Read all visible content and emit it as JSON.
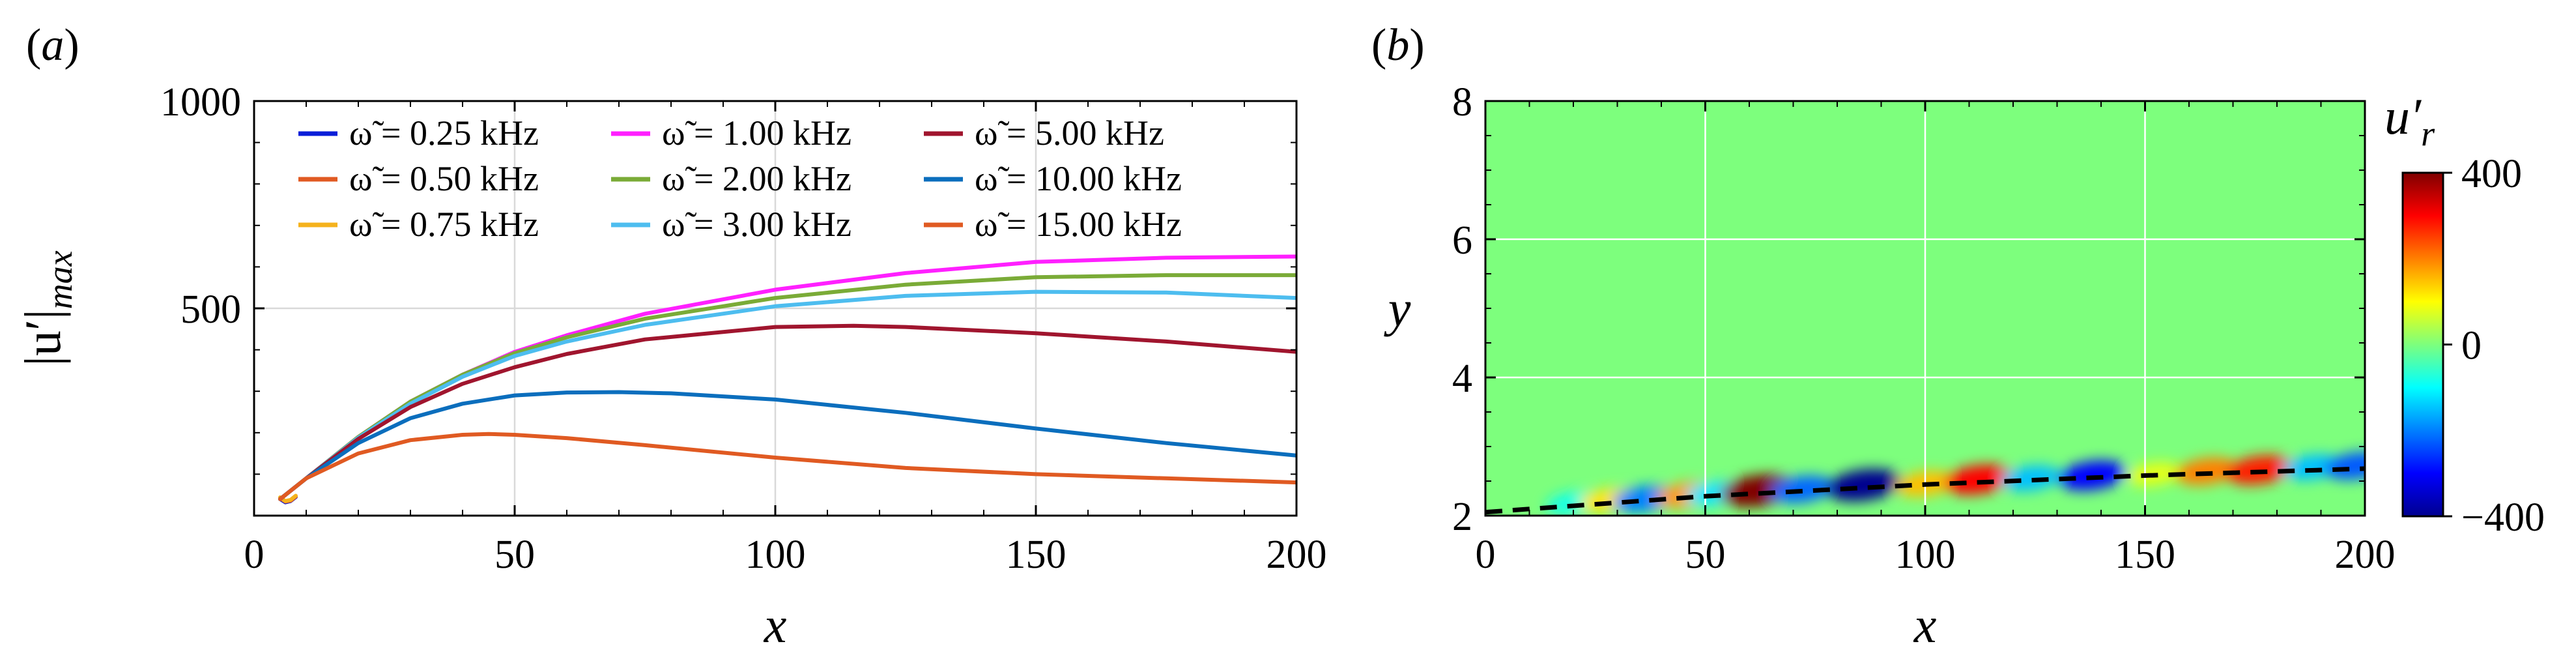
{
  "chart_data": [
    {
      "type": "line",
      "panel_label": "(a)",
      "xlabel": "x",
      "ylabel": "|u′|max",
      "ylabel_main": "|u′|",
      "ylabel_sub": "max",
      "xlim": [
        0,
        200
      ],
      "ylim": [
        0,
        1000
      ],
      "xticks": [
        0,
        50,
        100,
        150,
        200
      ],
      "yticks": [
        500,
        1000
      ],
      "x_tick_labels": [
        "0",
        "50",
        "100",
        "150",
        "200"
      ],
      "y_tick_labels": [
        "500",
        "1000"
      ],
      "grid": true,
      "legend_position": "top-left",
      "series": [
        {
          "name": "ω̃ = 0.25 kHz",
          "color": "#0a1ed8",
          "x": [
            5,
            6,
            7,
            8
          ],
          "y": [
            40,
            32,
            35,
            45
          ]
        },
        {
          "name": "ω̃ = 0.50 kHz",
          "color": "#e05a22",
          "x": [
            5,
            6,
            7,
            8
          ],
          "y": [
            42,
            34,
            36,
            46
          ]
        },
        {
          "name": "ω̃ = 0.75 kHz",
          "color": "#f5b21c",
          "x": [
            5,
            6,
            7,
            8
          ],
          "y": [
            44,
            35,
            38,
            48
          ]
        },
        {
          "name": "ω̃ = 1.00 kHz",
          "color": "#ff20ff",
          "x": [
            5,
            10,
            20,
            30,
            40,
            50,
            60,
            75,
            100,
            125,
            150,
            175,
            200
          ],
          "y": [
            40,
            90,
            190,
            275,
            340,
            395,
            435,
            487,
            545,
            585,
            612,
            622,
            625
          ]
        },
        {
          "name": "ω̃ = 2.00 kHz",
          "color": "#7aab37",
          "x": [
            5,
            10,
            20,
            30,
            40,
            50,
            60,
            75,
            100,
            125,
            150,
            175,
            200
          ],
          "y": [
            40,
            90,
            190,
            275,
            340,
            392,
            430,
            475,
            525,
            557,
            575,
            580,
            580
          ]
        },
        {
          "name": "ω̃ = 3.00 kHz",
          "color": "#4dbdef",
          "x": [
            5,
            10,
            20,
            30,
            40,
            50,
            60,
            75,
            100,
            125,
            150,
            175,
            200
          ],
          "y": [
            40,
            90,
            188,
            270,
            335,
            385,
            420,
            460,
            505,
            530,
            540,
            538,
            525
          ]
        },
        {
          "name": "ω̃ = 5.00 kHz",
          "color": "#a0152e",
          "x": [
            5,
            10,
            20,
            30,
            40,
            50,
            60,
            75,
            100,
            115,
            125,
            150,
            175,
            200
          ],
          "y": [
            40,
            90,
            185,
            262,
            318,
            358,
            390,
            425,
            455,
            458,
            455,
            440,
            420,
            395
          ]
        },
        {
          "name": "ω̃ = 10.00 kHz",
          "color": "#0b6ebd",
          "x": [
            5,
            10,
            20,
            30,
            40,
            50,
            60,
            70,
            80,
            100,
            125,
            150,
            175,
            200
          ],
          "y": [
            40,
            90,
            175,
            235,
            270,
            290,
            297,
            298,
            295,
            280,
            248,
            210,
            175,
            145
          ]
        },
        {
          "name": "ω̃ = 15.00 kHz",
          "color": "#e05a22",
          "x": [
            5,
            10,
            15,
            20,
            30,
            40,
            45,
            50,
            60,
            75,
            100,
            125,
            150,
            175,
            200
          ],
          "y": [
            40,
            90,
            120,
            150,
            182,
            195,
            197,
            195,
            187,
            170,
            140,
            115,
            100,
            90,
            80
          ]
        }
      ]
    },
    {
      "type": "heatmap",
      "panel_label": "(b)",
      "xlabel": "x",
      "ylabel": "y",
      "xlim": [
        0,
        200
      ],
      "ylim": [
        2,
        8
      ],
      "xticks": [
        0,
        50,
        100,
        150,
        200
      ],
      "yticks": [
        2,
        4,
        6,
        8
      ],
      "x_tick_labels": [
        "0",
        "50",
        "100",
        "150",
        "200"
      ],
      "y_tick_labels": [
        "2",
        "4",
        "6",
        "8"
      ],
      "grid": true,
      "colorbar": {
        "label": "u′r",
        "label_main": "u′",
        "label_sub": "r",
        "min": -400,
        "max": 400,
        "ticks": [
          -400,
          0,
          400
        ],
        "tick_labels": [
          "−400",
          "0",
          "400"
        ],
        "colormap": "jet"
      },
      "background_value": 0,
      "dashed_line": {
        "x": [
          0,
          50,
          100,
          150,
          200
        ],
        "y": [
          2.05,
          2.28,
          2.45,
          2.58,
          2.68
        ],
        "color": "#000000"
      },
      "wave_packets": [
        {
          "x": 20,
          "y": 2.18,
          "value": -80
        },
        {
          "x": 28,
          "y": 2.22,
          "value": 120
        },
        {
          "x": 36,
          "y": 2.24,
          "value": -200
        },
        {
          "x": 46,
          "y": 2.3,
          "value": 180
        },
        {
          "x": 52,
          "y": 2.32,
          "value": -120
        },
        {
          "x": 62,
          "y": 2.36,
          "value": 400
        },
        {
          "x": 72,
          "y": 2.38,
          "value": -220
        },
        {
          "x": 86,
          "y": 2.44,
          "value": -400
        },
        {
          "x": 100,
          "y": 2.46,
          "value": 150
        },
        {
          "x": 112,
          "y": 2.52,
          "value": 300
        },
        {
          "x": 124,
          "y": 2.54,
          "value": -150
        },
        {
          "x": 138,
          "y": 2.58,
          "value": -300
        },
        {
          "x": 152,
          "y": 2.6,
          "value": 80
        },
        {
          "x": 164,
          "y": 2.64,
          "value": 200
        },
        {
          "x": 176,
          "y": 2.66,
          "value": 280
        },
        {
          "x": 188,
          "y": 2.7,
          "value": -150
        },
        {
          "x": 198,
          "y": 2.72,
          "value": -230
        }
      ]
    }
  ]
}
